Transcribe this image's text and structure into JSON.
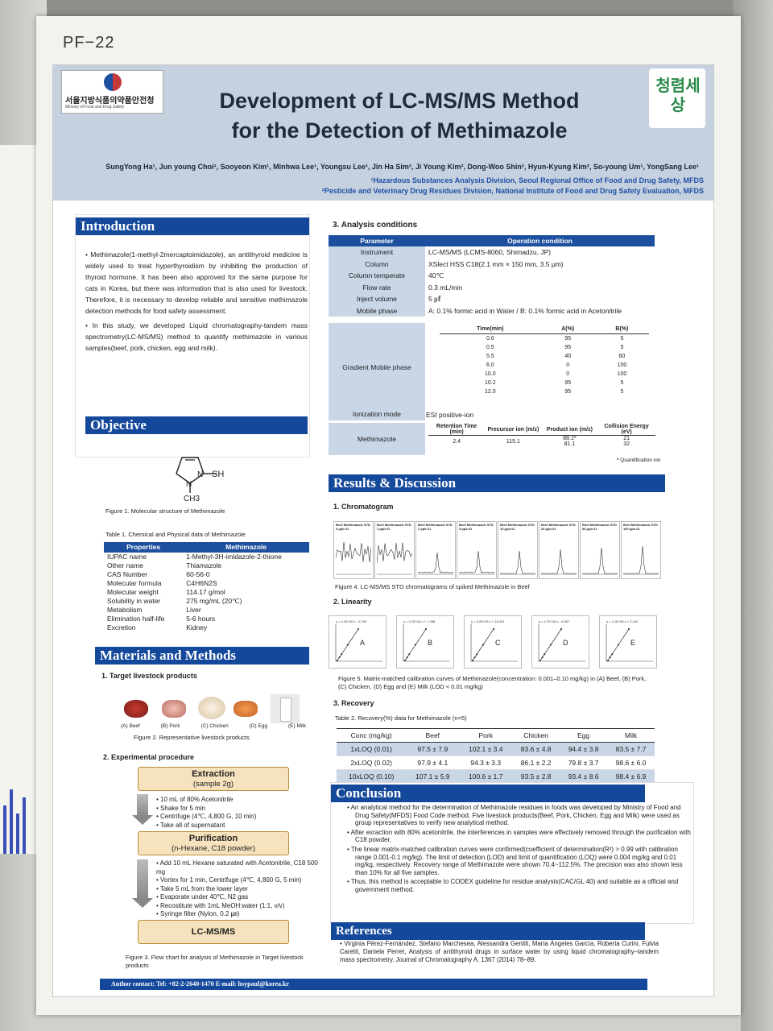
{
  "board_label": "PF−22",
  "header": {
    "logo_left_text": "서울지방식품의약품안전청",
    "logo_left_sub": "Ministry of Food and Drug Safety",
    "logo_right_text": "청렴세상",
    "title_line1": "Development of LC-MS/MS Method",
    "title_line2": "for the Detection of Methimazole",
    "authors": "SungYong Ha¹, Jun young Choi¹, Sooyeon Kim¹, Minhwa Lee¹, Youngsu Lee¹, Jin Ha Sim², Ji Young Kim², Dong-Woo Shin², Hyun-Kyung Kim², So-young Um¹, YongSang Lee¹",
    "affiliation1": "¹Hazardous Substances Analysis Division, Seoul Regional Office of Food and Drug Safety, MFDS",
    "affiliation2": "²Pesticide and Veterinary Drug Residues Division, National Institute of Food and Drug Safety Evaluation, MFDS"
  },
  "introduction": {
    "heading": "Introduction",
    "p1": "Methimazole(1-methyl-2mercaptoimidazole), an antithyroid medicine is widely used to treat hyperthyroidism by inhibiting the production of thyroid hormone. It has been also approved for the same purpose for cats in Korea, but there was information that is also used for livestock. Therefore, it is necessary to develop reliable and sensitive methimazole detection methods for food safety assessment.",
    "p2": "In this study, we developed Liquid chromatography-tandem mass spectrometry(LC-MS/MS) method to quantify methimazole in various samples(beef, pork, chicken, egg and milk)."
  },
  "objective": {
    "heading": "Objective",
    "mol_sh": "SH",
    "mol_n1": "N",
    "mol_n2": "N",
    "mol_ch3": "CH3",
    "fig1_caption": "Figure 1. Molecular structure of Methimazole",
    "table1_caption": "Table 1. Chemical and Physical data of Methimazole",
    "table1_headers": [
      "Properties",
      "Methimazole"
    ],
    "table1_rows": [
      [
        "IUPAC name",
        "1-Methyl-3H-imidazole-2-thione"
      ],
      [
        "Other name",
        "Thiamazole"
      ],
      [
        "CAS Number",
        "60-56-0"
      ],
      [
        "Molecular formula",
        "C4H6N2S"
      ],
      [
        "Molecular weight",
        "114.17 g/mol"
      ],
      [
        "Solubility in water",
        "275 mg/mL (20℃)"
      ],
      [
        "Metabolism",
        "Liver"
      ],
      [
        "Elimination half-life",
        "5-6 hours"
      ],
      [
        "Excretion",
        "Kidney"
      ]
    ]
  },
  "materials": {
    "heading": "Materials and Methods",
    "sub1": "1.  Target livestock products",
    "products": [
      "(A) Beef",
      "(B) Pork",
      "(C) Chicken",
      "(D) Egg",
      "(E) Milk"
    ],
    "fig2_caption": "Figure 2. Representative livestock products",
    "sub2": "2.  Experimental procedure",
    "step1_title": "Extraction",
    "step1_sub": "(sample 2g)",
    "step1_items": [
      "10 mL of  80% Acetonitrile",
      "Shake for 5 min",
      "Centrifuge (4℃, 4,800 G, 10 min)",
      "Take all of supernatant"
    ],
    "step2_title": "Purification",
    "step2_sub": "(n-Hexane, C18 powder)",
    "step2_items": [
      "Add 10 mL Hexane saturated with Acetonitrile, C18 500 mg",
      "Vortex for 1 min, Centrifuge (4℃, 4,800 G, 5 min)",
      "Take 5 mL from the lower layer",
      "Evaporate under 40℃, N2 gas",
      "Recostitute with 1mL MeOH:water (1:1, v/v)",
      "Syringe filter (Nylon, 0.2 ㎛)"
    ],
    "step3_title": "LC-MS/MS",
    "fig3_caption": "Figure 3. Flow chart for analysis of Methimazole in Target livestock products"
  },
  "analysis": {
    "heading": "3.  Analysis conditions",
    "headers": [
      "Parameter",
      "Operation condition"
    ],
    "rows": [
      [
        "Instrument",
        "LC-MS/MS (LCMS-8060, Shimadzu, JP)"
      ],
      [
        "Column",
        "XSlect HSS C18(2.1 mm × 150 mm, 3.5 μm)"
      ],
      [
        "Column temperate",
        "40℃"
      ],
      [
        "Flow rate",
        "0.3 mL/min"
      ],
      [
        "Inject volume",
        "5 ㎕"
      ],
      [
        "Mobile phase",
        "A: 0.1% formic acid in Water / B: 0.1% formic acid in Acetonitrile"
      ]
    ],
    "gradient_label": "Gradient Mobile phase",
    "gradient_headers": [
      "Time(min)",
      "A(%)",
      "B(%)"
    ],
    "gradient_rows": [
      [
        "0.0",
        "95",
        "5"
      ],
      [
        "0.5",
        "95",
        "5"
      ],
      [
        "5.5",
        "40",
        "60"
      ],
      [
        "6.0",
        "0",
        "100"
      ],
      [
        "10.0",
        "0",
        "100"
      ],
      [
        "10.2",
        "95",
        "5"
      ],
      [
        "12.0",
        "95",
        "5"
      ]
    ],
    "ionization_label": "Ionization mode",
    "ionization_value": "ESI positive-ion",
    "mrm_label": "Methimazole",
    "mrm_headers": [
      "Retention Time (min)",
      "Precursor ion (m/z)",
      "Product ion (m/z)",
      "Collision Energy (eV)"
    ],
    "mrm_values": [
      "2.4",
      "115.1",
      "88.1ª\n81.1",
      "21\n32"
    ],
    "mrm_note": "ª Quantification ion"
  },
  "results": {
    "heading": "Results & Discussion",
    "sub1": "1. Chromatogram",
    "chromatograms": [
      "Beef Methimazole STD 0 ppb 01",
      "Beef Methimazole STD 1 ppb 01",
      "Beef Methimazole STD 2 ppb 01",
      "Beef Methimazole STD 5 ppb 01",
      "Beef Methimazole STD 10 ppb 01",
      "Beef Methimazole STD 20 ppb 01",
      "Beef Methimazole STD 50 ppb 01",
      "Beef Methimazole STD 100 ppb 01"
    ],
    "fig4_caption": "Figure 4. LC-MS/MS STD chromatograms of spiked Methimazole in Beef",
    "sub2": "2. Linearity",
    "linearity_labels": [
      "A",
      "B",
      "C",
      "D",
      "E"
    ],
    "linearity_eqs": [
      "y = 4.1E+06 x - 5.704",
      "y = 3.1E+06 x + 1.288",
      "y = 6.2E+06 x + 18.324",
      "y = 4.7E+06 x - 8.557",
      "y = 4.1E+06 x + 2.242"
    ],
    "fig5_caption": "Figure 5. Matrix-matched calibration curves of Methimazole(concentration: 0.001–0.10 mg/kg) in (A) Beef, (B) Pork, (C) Chicken, (D) Egg and (E) Milk (LOD < 0.01 mg/kg)",
    "sub3": "3. Recovery",
    "table2_caption": "Table 2. Recovery(%) data for Methimazole (n=5)",
    "table2_headers": [
      "Conc (mg/kg)",
      "Beef",
      "Pork",
      "Chicken",
      "Egg",
      "Milk"
    ],
    "table2_rows": [
      [
        "1xLOQ (0.01)",
        "97.5 ± 7.9",
        "102.1 ± 3.4",
        "83.6 ± 4.8",
        "94.4 ± 3.8",
        "83.5 ± 7.7"
      ],
      [
        "2xLOQ (0.02)",
        "97.9 ± 4.1",
        "94.3 ± 3.3",
        "86.1 ± 2.2",
        "79.8 ± 3.7",
        "98.6 ± 6.0"
      ],
      [
        "10xLOQ (0.10)",
        "107.1 ± 5.9",
        "100.6 ± 1.7",
        "93.5 ± 2.8",
        "93.4 ± 8.6",
        "98.4 ± 6.9"
      ]
    ]
  },
  "conclusion": {
    "heading": "Conclusion",
    "items": [
      "An analytical method for the determination of Methimazole residues in foods was developed by Ministry of Food and Drug Safety(MFDS) Food Code method. Five livestock products(Beef, Pork, Chicken, Egg and Milk) were used as group representatives to verify new analytical method.",
      "After exraction with 80% acetonitrile, the interferences in samples were effectively removed through the purification with C18 powder.",
      "The linear matrix-matched calibration curves were confirmed(coefficient of determination(R²) > 0.99 with calibration range 0.001-0.1 mg/kg). The limit of detection (LOD) and limit of quantification (LOQ) were 0.004 mg/kg and 0.01 mg/kg, respectively. Recovery range of Methimazole were shown 70.4~112.5%. The precision was also shown less than 10% for all five samples.",
      "Thus, this method is acceptable to CODEX guideline for residue analysis(CAC/GL 40) and suitable as a official and government method."
    ]
  },
  "references": {
    "heading": "References",
    "items": [
      "Virginia Pérez-Fernández, Stefano Marchesea, Alessandra Gentili, María Ángeles García, Roberta Curini, Fulvia Caretti, Daniela Perret, Analysis of antithyroid drugs in surface water by using liquid chromatography–tandem mass spectrometry. Journal of Chromatography A. 1367 (2014) 78–89."
    ]
  },
  "footer": "Author contact:  Tel: +82-2-2640-1470   E-mail: hsypaul@korea.kr",
  "colors": {
    "accent": "#14489b",
    "header_bg": "#c5d1df",
    "table_stripe": "#c9d6e6",
    "flow_box": "#f6e2bd"
  }
}
